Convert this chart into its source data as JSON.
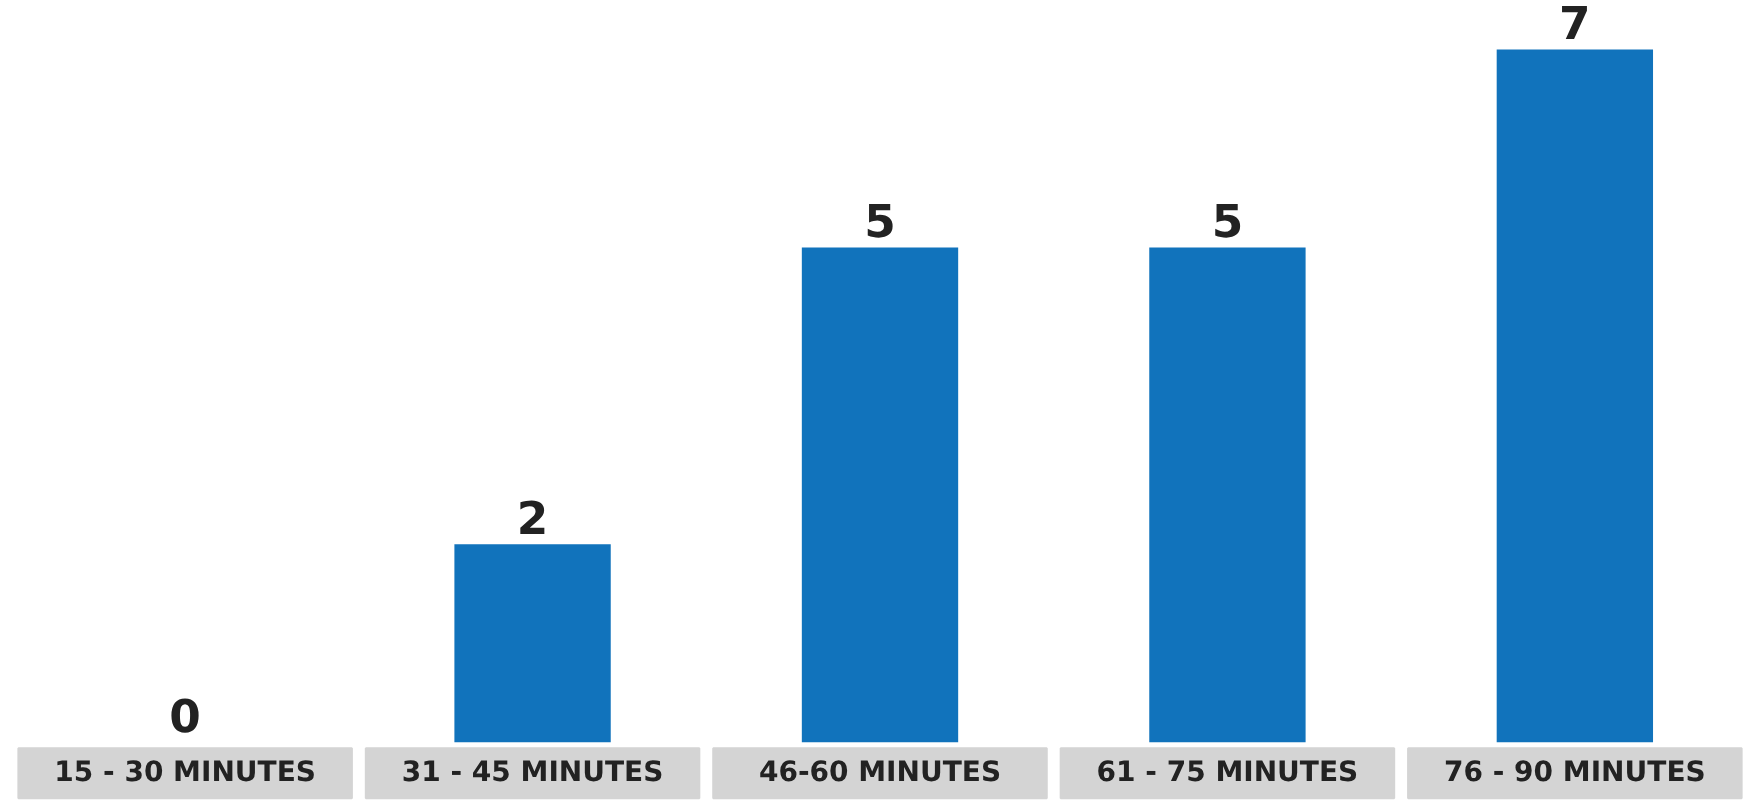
{
  "chart_data": {
    "type": "bar",
    "categories": [
      "15 - 30 MINUTES",
      "31 - 45 MINUTES",
      "46-60 MINUTES",
      "61 - 75 MINUTES",
      "76 - 90 MINUTES"
    ],
    "values": [
      0,
      2,
      5,
      5,
      7
    ],
    "color": "#1173bc",
    "data_labels": true
  }
}
